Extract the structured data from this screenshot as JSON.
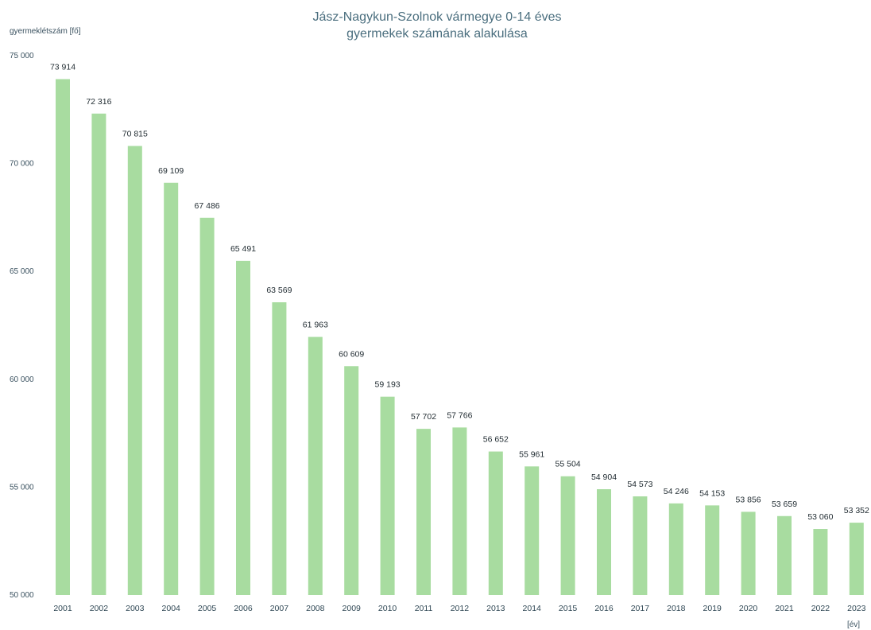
{
  "chart_data": {
    "type": "bar",
    "title_lines": [
      "Jász-Nagykun-Szolnok vármegye 0-14 éves",
      "gyermekek számának alakulása"
    ],
    "ylabel": "gyermeklétszám [fő]",
    "xlabel": "[év]",
    "ylim": [
      50000,
      75000
    ],
    "yticks": [
      50000,
      55000,
      60000,
      65000,
      70000,
      75000
    ],
    "ytick_labels": [
      "50 000",
      "55 000",
      "60 000",
      "65 000",
      "70 000",
      "75 000"
    ],
    "grid": false,
    "bar_color": "#a8dca0",
    "categories": [
      "2001",
      "2002",
      "2003",
      "2004",
      "2005",
      "2006",
      "2007",
      "2008",
      "2009",
      "2010",
      "2011",
      "2012",
      "2013",
      "2014",
      "2015",
      "2016",
      "2017",
      "2018",
      "2019",
      "2020",
      "2021",
      "2022",
      "2023"
    ],
    "values": [
      73914,
      72316,
      70815,
      69109,
      67486,
      65491,
      63569,
      61963,
      60609,
      59193,
      57702,
      57766,
      56652,
      55961,
      55504,
      54904,
      54573,
      54246,
      54153,
      53856,
      53659,
      53060,
      53352
    ],
    "data_labels": [
      "73 914",
      "72 316",
      "70 815",
      "69 109",
      "67 486",
      "65 491",
      "63 569",
      "61 963",
      "60 609",
      "59 193",
      "57 702",
      "57 766",
      "56 652",
      "55 961",
      "55 504",
      "54 904",
      "54 573",
      "54 246",
      "54 153",
      "53 856",
      "53 659",
      "53 060",
      "53 352"
    ]
  }
}
